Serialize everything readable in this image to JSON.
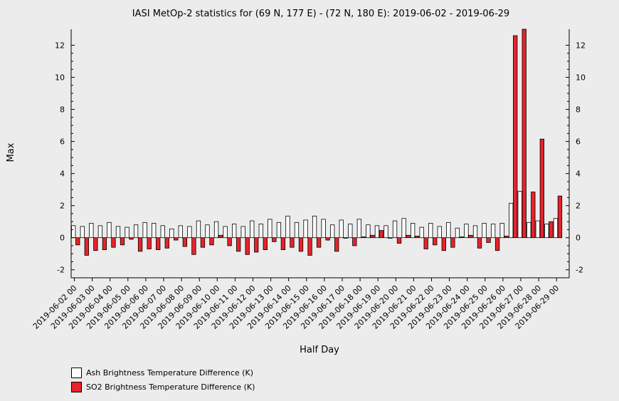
{
  "chart_data": {
    "type": "bar",
    "title": "IASI MetOp-2 statistics for (69 N, 177 E) - (72 N, 180 E): 2019-06-02 - 2019-06-29",
    "xlabel": "Half Day",
    "ylabel": "Max",
    "ylim": [
      -2.5,
      13
    ],
    "yticks": [
      -2,
      0,
      2,
      4,
      6,
      8,
      10,
      12
    ],
    "legend_position": "bottom-left",
    "xtick_labels": [
      "2019-06-02 00",
      "2019-06-03 00",
      "2019-06-04 00",
      "2019-06-05 00",
      "2019-06-06 00",
      "2019-06-07 00",
      "2019-06-08 00",
      "2019-06-09 00",
      "2019-06-10 00",
      "2019-06-11 00",
      "2019-06-12 00",
      "2019-06-13 00",
      "2019-06-14 00",
      "2019-06-15 00",
      "2019-06-16 00",
      "2019-06-17 00",
      "2019-06-18 00",
      "2019-06-19 00",
      "2019-06-20 00",
      "2019-06-21 00",
      "2019-06-22 00",
      "2019-06-23 00",
      "2019-06-24 00",
      "2019-06-25 00",
      "2019-06-26 00",
      "2019-06-27 00",
      "2019-06-28 00",
      "2019-06-29 00"
    ],
    "series": [
      {
        "name": "Ash Brightness Temperature Difference (K)",
        "color": "#ffffff",
        "values": [
          0.75,
          0.7,
          0.9,
          0.75,
          0.95,
          0.7,
          0.65,
          0.8,
          0.95,
          0.9,
          0.75,
          0.55,
          0.75,
          0.7,
          1.05,
          0.8,
          1.0,
          0.7,
          0.85,
          0.7,
          1.05,
          0.85,
          1.15,
          0.95,
          1.35,
          0.95,
          1.1,
          1.35,
          1.15,
          0.8,
          1.1,
          0.85,
          1.15,
          0.8,
          0.75,
          0.75,
          1.05,
          1.2,
          0.9,
          0.65,
          0.9,
          0.7,
          0.95,
          0.6,
          0.85,
          0.75,
          0.9,
          0.85,
          0.9,
          2.15,
          2.9,
          0.95,
          1.05,
          0.85,
          1.2
        ]
      },
      {
        "name": "SO2 Brightness Temperature Difference (K)",
        "color": "#e8232a",
        "values": [
          -0.45,
          -1.1,
          -0.8,
          -0.75,
          -0.6,
          -0.45,
          -0.1,
          -0.85,
          -0.7,
          -0.75,
          -0.65,
          -0.15,
          -0.55,
          -1.05,
          -0.6,
          -0.45,
          0.15,
          -0.5,
          -0.85,
          -1.05,
          -0.9,
          -0.75,
          -0.25,
          -0.75,
          -0.6,
          -0.85,
          -1.1,
          -0.6,
          -0.15,
          -0.85,
          0.0,
          -0.5,
          0.05,
          0.15,
          0.45,
          0.0,
          -0.35,
          0.15,
          0.1,
          -0.7,
          -0.45,
          -0.8,
          -0.6,
          0.05,
          0.15,
          -0.65,
          -0.3,
          -0.8,
          0.1,
          12.6,
          13.0,
          2.85,
          6.15,
          1.0,
          2.6
        ]
      }
    ]
  }
}
